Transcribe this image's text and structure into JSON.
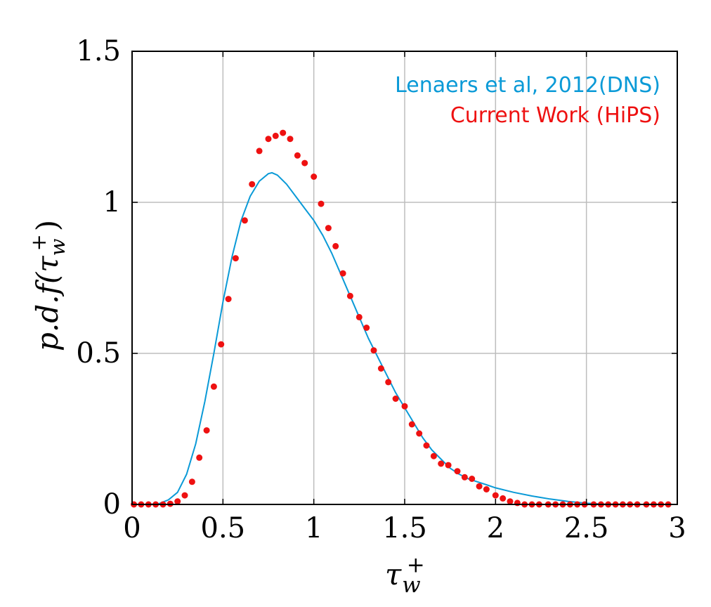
{
  "chart_data": {
    "type": "line",
    "xlabel": "τw+",
    "ylabel": "p.d.f(τw+)",
    "xlim": [
      0,
      3
    ],
    "ylim": [
      0,
      1.5
    ],
    "grid": true,
    "legend_position": "top-right",
    "x_ticks": [
      {
        "value": 0,
        "label": "0"
      },
      {
        "value": 0.5,
        "label": "0.5"
      },
      {
        "value": 1,
        "label": "1"
      },
      {
        "value": 1.5,
        "label": "1.5"
      },
      {
        "value": 2,
        "label": "2"
      },
      {
        "value": 2.5,
        "label": "2.5"
      },
      {
        "value": 3,
        "label": "3"
      }
    ],
    "y_ticks": [
      {
        "value": 0,
        "label": "0"
      },
      {
        "value": 0.5,
        "label": "0.5"
      },
      {
        "value": 1,
        "label": "1"
      },
      {
        "value": 1.5,
        "label": "1.5"
      }
    ],
    "series": [
      {
        "name": "Lenaers et al, 2012(DNS)",
        "style": "line",
        "color": "#0a9ad7",
        "x": [
          0,
          0.1,
          0.15,
          0.2,
          0.25,
          0.3,
          0.35,
          0.4,
          0.45,
          0.5,
          0.55,
          0.6,
          0.65,
          0.7,
          0.75,
          0.77,
          0.8,
          0.85,
          0.9,
          0.95,
          1.0,
          1.05,
          1.1,
          1.15,
          1.2,
          1.25,
          1.3,
          1.35,
          1.4,
          1.45,
          1.5,
          1.55,
          1.6,
          1.65,
          1.7,
          1.75,
          1.8,
          1.85,
          1.9,
          1.95,
          2.0,
          2.1,
          2.2,
          2.3,
          2.4,
          2.5,
          2.6,
          2.8,
          3.0
        ],
        "y": [
          0,
          0,
          0.003,
          0.015,
          0.04,
          0.1,
          0.2,
          0.34,
          0.5,
          0.67,
          0.82,
          0.94,
          1.02,
          1.07,
          1.095,
          1.098,
          1.09,
          1.06,
          1.02,
          0.98,
          0.94,
          0.89,
          0.83,
          0.76,
          0.69,
          0.62,
          0.55,
          0.49,
          0.43,
          0.37,
          0.32,
          0.27,
          0.22,
          0.18,
          0.15,
          0.12,
          0.1,
          0.085,
          0.075,
          0.065,
          0.055,
          0.04,
          0.028,
          0.018,
          0.01,
          0.004,
          0.001,
          0,
          0
        ]
      },
      {
        "name": "Current Work (HiPS)",
        "style": "points",
        "color": "#ee1111",
        "x": [
          0.01,
          0.05,
          0.09,
          0.13,
          0.17,
          0.21,
          0.25,
          0.29,
          0.33,
          0.37,
          0.41,
          0.45,
          0.49,
          0.53,
          0.57,
          0.62,
          0.66,
          0.7,
          0.75,
          0.79,
          0.83,
          0.87,
          0.91,
          0.95,
          1.0,
          1.04,
          1.08,
          1.12,
          1.16,
          1.2,
          1.25,
          1.29,
          1.33,
          1.37,
          1.41,
          1.45,
          1.5,
          1.54,
          1.58,
          1.62,
          1.66,
          1.7,
          1.74,
          1.79,
          1.83,
          1.87,
          1.91,
          1.95,
          2.0,
          2.04,
          2.08,
          2.12,
          2.16,
          2.2,
          2.24,
          2.29,
          2.33,
          2.37,
          2.41,
          2.45,
          2.49,
          2.54,
          2.58,
          2.62,
          2.66,
          2.7,
          2.74,
          2.78,
          2.83,
          2.87,
          2.91,
          2.95
        ],
        "y": [
          0,
          0,
          0,
          0,
          0,
          0.002,
          0.01,
          0.03,
          0.075,
          0.155,
          0.245,
          0.39,
          0.53,
          0.68,
          0.815,
          0.94,
          1.06,
          1.17,
          1.21,
          1.22,
          1.23,
          1.21,
          1.155,
          1.13,
          1.085,
          0.995,
          0.915,
          0.855,
          0.765,
          0.69,
          0.62,
          0.585,
          0.51,
          0.45,
          0.405,
          0.35,
          0.325,
          0.265,
          0.235,
          0.195,
          0.16,
          0.135,
          0.13,
          0.11,
          0.09,
          0.085,
          0.06,
          0.05,
          0.03,
          0.02,
          0.01,
          0.005,
          0,
          0,
          0,
          0,
          0,
          0,
          0,
          0,
          0,
          0,
          0,
          0,
          0,
          0,
          0,
          0,
          0,
          0,
          0,
          0
        ]
      }
    ]
  }
}
